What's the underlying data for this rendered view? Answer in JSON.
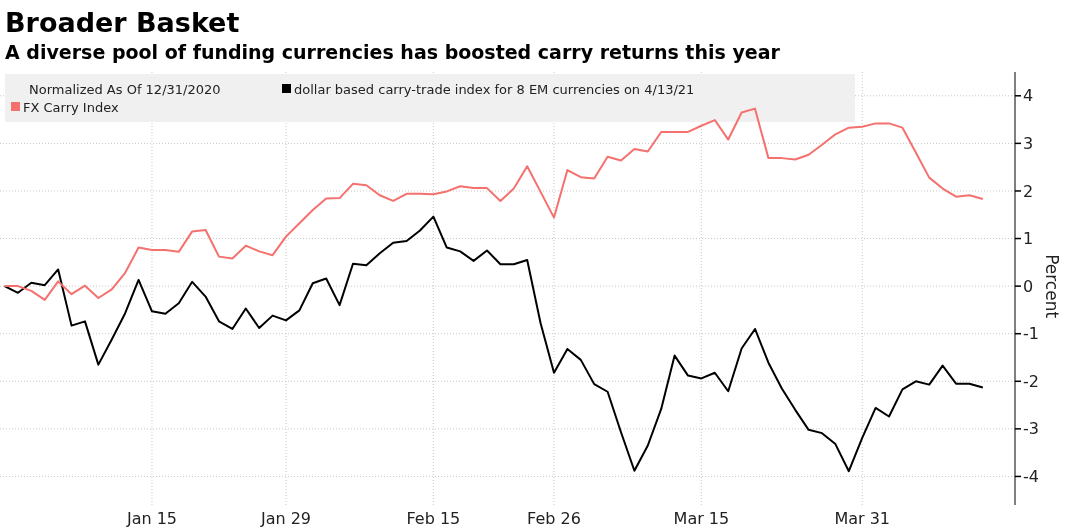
{
  "chart_data": {
    "type": "line",
    "title": "Broader Basket",
    "subtitle": "A diverse pool of funding currencies has boosted carry returns this year",
    "ylabel": "Percent",
    "legend_title": "Normalized As Of 12/31/2020",
    "legend": "top left",
    "grid": true,
    "categories": [
      null,
      null,
      null,
      null,
      null,
      null,
      null,
      null,
      null,
      null,
      null,
      "Jan 15",
      null,
      null,
      null,
      null,
      null,
      null,
      null,
      null,
      null,
      "Jan 29",
      null,
      null,
      null,
      null,
      null,
      null,
      null,
      null,
      null,
      null,
      "Feb 15",
      null,
      null,
      null,
      null,
      null,
      null,
      null,
      null,
      "Feb 26",
      null,
      null,
      null,
      null,
      null,
      null,
      null,
      null,
      null,
      null,
      "Mar 15",
      null,
      null,
      null,
      null,
      null,
      null,
      null,
      null,
      null,
      null,
      null,
      "Mar 31",
      null,
      null,
      null,
      null,
      null,
      null,
      null,
      null,
      null
    ],
    "ylim": [
      -4.6,
      4.5
    ],
    "yticks": [
      -4,
      -3,
      -2,
      -1,
      0,
      1,
      2,
      3,
      4
    ],
    "series": [
      {
        "name": "dollar based carry-trade index for 8 EM currencies on 4/13/21",
        "color": "#000000",
        "values": [
          0,
          -0.14,
          0.07,
          0.02,
          0.35,
          -0.83,
          -0.74,
          -1.65,
          -1.12,
          -0.57,
          0.13,
          -0.53,
          -0.58,
          -0.36,
          0.09,
          -0.22,
          -0.74,
          -0.9,
          -0.47,
          -0.88,
          -0.62,
          -0.72,
          -0.51,
          0.06,
          0.16,
          -0.4,
          0.47,
          0.44,
          0.69,
          0.91,
          0.95,
          1.17,
          1.46,
          0.81,
          0.73,
          0.53,
          0.75,
          0.46,
          0.46,
          0.55,
          -0.78,
          -1.82,
          -1.32,
          -1.55,
          -2.06,
          -2.22,
          -3.07,
          -3.88,
          -3.35,
          -2.58,
          -1.46,
          -1.88,
          -1.94,
          -1.82,
          -2.21,
          -1.31,
          -0.9,
          -1.61,
          -2.15,
          -2.6,
          -3.02,
          -3.09,
          -3.32,
          -3.89,
          -3.19,
          -2.56,
          -2.74,
          -2.17,
          -2.0,
          -2.07,
          -1.67,
          -2.05,
          -2.05,
          -2.13
        ]
      },
      {
        "name": "FX Carry Index",
        "color": "#f4716e",
        "values": [
          0,
          0,
          -0.1,
          -0.29,
          0.1,
          -0.17,
          0.01,
          -0.25,
          -0.07,
          0.28,
          0.81,
          0.76,
          0.76,
          0.72,
          1.15,
          1.18,
          0.62,
          0.58,
          0.85,
          0.73,
          0.65,
          1.04,
          1.32,
          1.6,
          1.84,
          1.85,
          2.15,
          2.12,
          1.91,
          1.79,
          1.94,
          1.94,
          1.93,
          1.99,
          2.1,
          2.06,
          2.06,
          1.79,
          2.05,
          2.52,
          1.98,
          1.44,
          2.44,
          2.29,
          2.26,
          2.72,
          2.64,
          2.88,
          2.83,
          3.24,
          3.24,
          3.24,
          3.37,
          3.49,
          3.08,
          3.65,
          3.73,
          2.69,
          2.69,
          2.66,
          2.76,
          2.97,
          3.19,
          3.33,
          3.35,
          3.42,
          3.42,
          3.33,
          2.81,
          2.28,
          2.05,
          1.88,
          1.91,
          1.83
        ]
      }
    ]
  }
}
